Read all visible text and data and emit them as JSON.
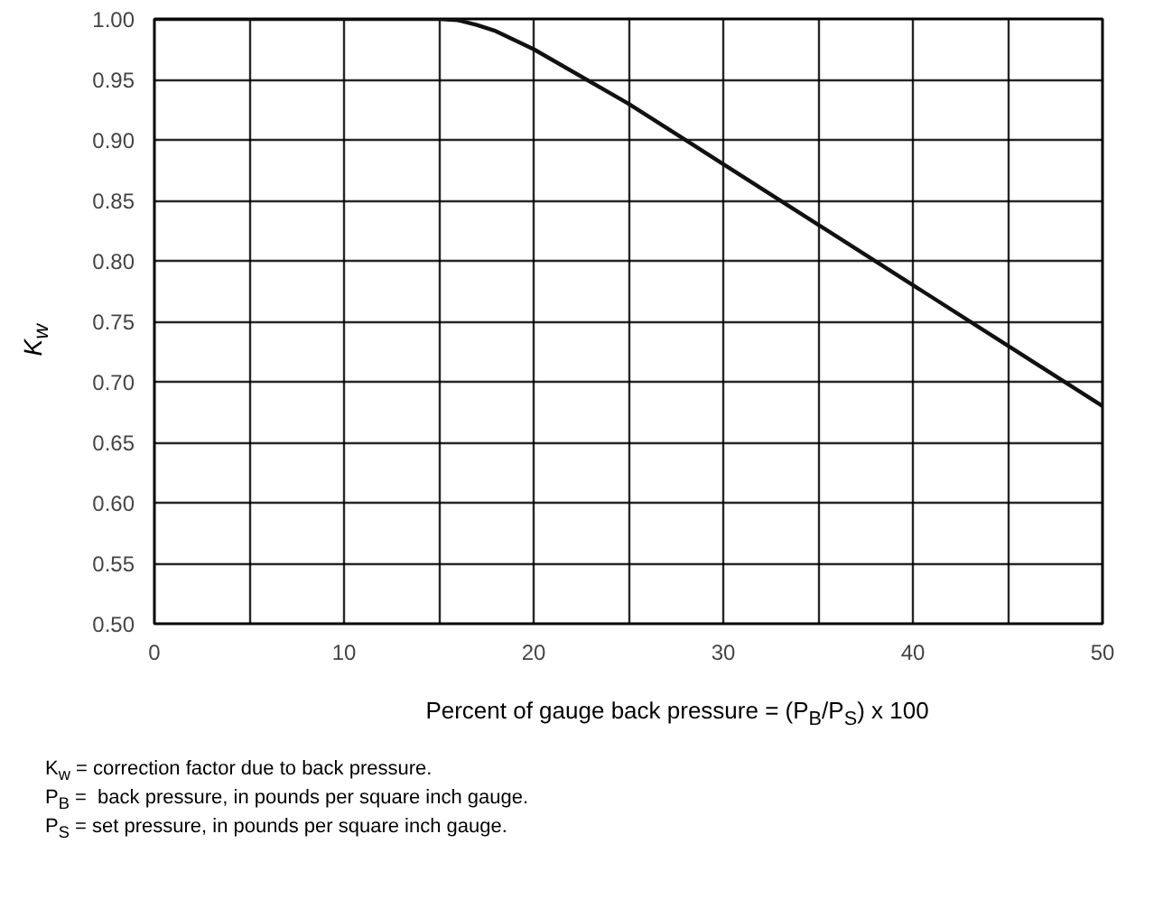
{
  "chart_data": {
    "type": "line",
    "xlabel": "Percent of gauge back pressure = (P$_{B}$/P$_{S}$) x 100",
    "ylabel": "K$_{w}$",
    "x": [
      0,
      15,
      16,
      17,
      18,
      20,
      25,
      30,
      35,
      40,
      45,
      50
    ],
    "series": [
      {
        "color": "#111111",
        "values": [
          1.0,
          1.0,
          0.999,
          0.995,
          0.99,
          0.975,
          0.93,
          0.88,
          0.83,
          0.78,
          0.73,
          0.68
        ]
      }
    ],
    "xlim": [
      0,
      50
    ],
    "ylim": [
      0.5,
      1.0
    ],
    "xticks": [
      0,
      {
        "value": 5,
        "label": null
      },
      10,
      {
        "value": 15,
        "label": null
      },
      20,
      {
        "value": 25,
        "label": null
      },
      30,
      {
        "value": 35,
        "label": null
      },
      40,
      {
        "value": 45,
        "label": null
      },
      50
    ],
    "yticks": [
      {
        "value": 0.5,
        "label": "0.50"
      },
      0.55,
      {
        "value": 0.6,
        "label": "0.60"
      },
      0.65,
      {
        "value": 0.7,
        "label": "0.70"
      },
      0.75,
      {
        "value": 0.8,
        "label": "0.80"
      },
      0.85,
      {
        "value": 0.9,
        "label": "0.90"
      },
      0.95,
      {
        "value": 1.0,
        "label": "1.00"
      }
    ],
    "grid": true,
    "marker": "none",
    "line_style": "solid",
    "annotations": [
      "K$_{w}$ = correction factor due to back pressure.",
      "P$_{B}$ =  back pressure, in pounds per square inch gauge.",
      "P$_{S}$ = set pressure, in pounds per square inch gauge."
    ]
  }
}
